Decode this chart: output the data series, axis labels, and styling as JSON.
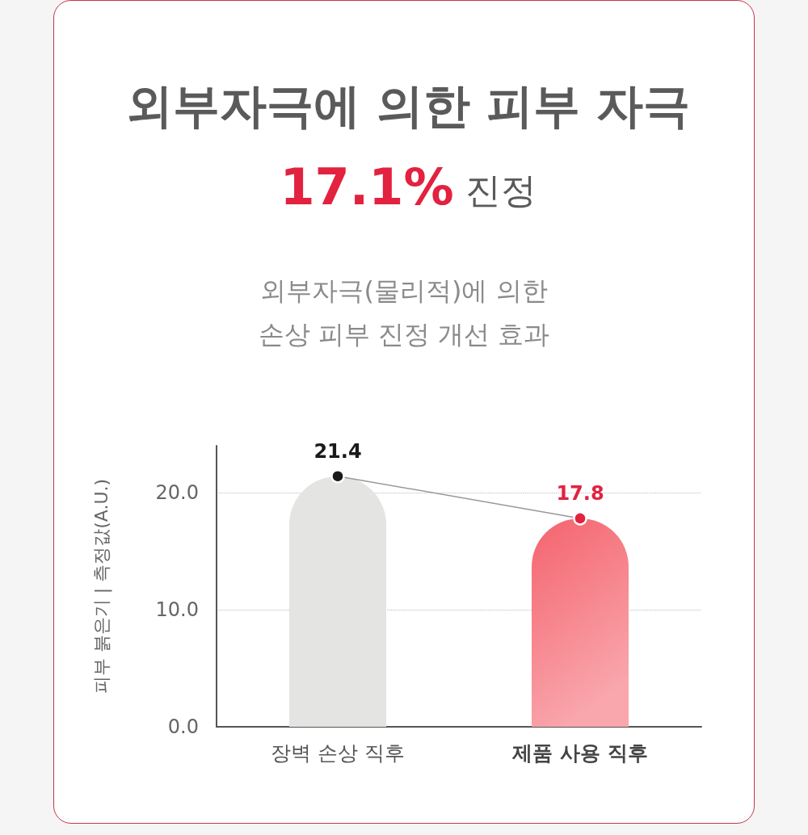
{
  "chart_data": {
    "type": "bar",
    "title": "외부자극에 의한 피부 자극\n17.1% 진정",
    "subtitle": "외부자극(물리적)에 의한\n손상 피부 진정 개선 효과",
    "ylabel": "피부 붉은기 | 측정값(A.U.)",
    "categories": [
      "장벽 손상 직후",
      "제품 사용 직후"
    ],
    "series": [
      {
        "values": [
          21.4,
          17.8
        ],
        "colors": [
          "#e4e4e2",
          "#f4636e"
        ]
      },
      {
        "type": "line",
        "values": [
          21.4,
          17.8
        ],
        "color": "#999999",
        "colors": [
          "#1a1a1a",
          "#e2223f"
        ],
        "marker": "circle",
        "line_style": "solid",
        "data_labels": true
      }
    ],
    "ylim": [
      0,
      24
    ],
    "yticks": [
      {
        "value": 0,
        "label": "0.0"
      },
      {
        "value": 10,
        "label": "10.0"
      },
      {
        "value": 20,
        "label": "20.0"
      }
    ],
    "grid": "y"
  }
}
